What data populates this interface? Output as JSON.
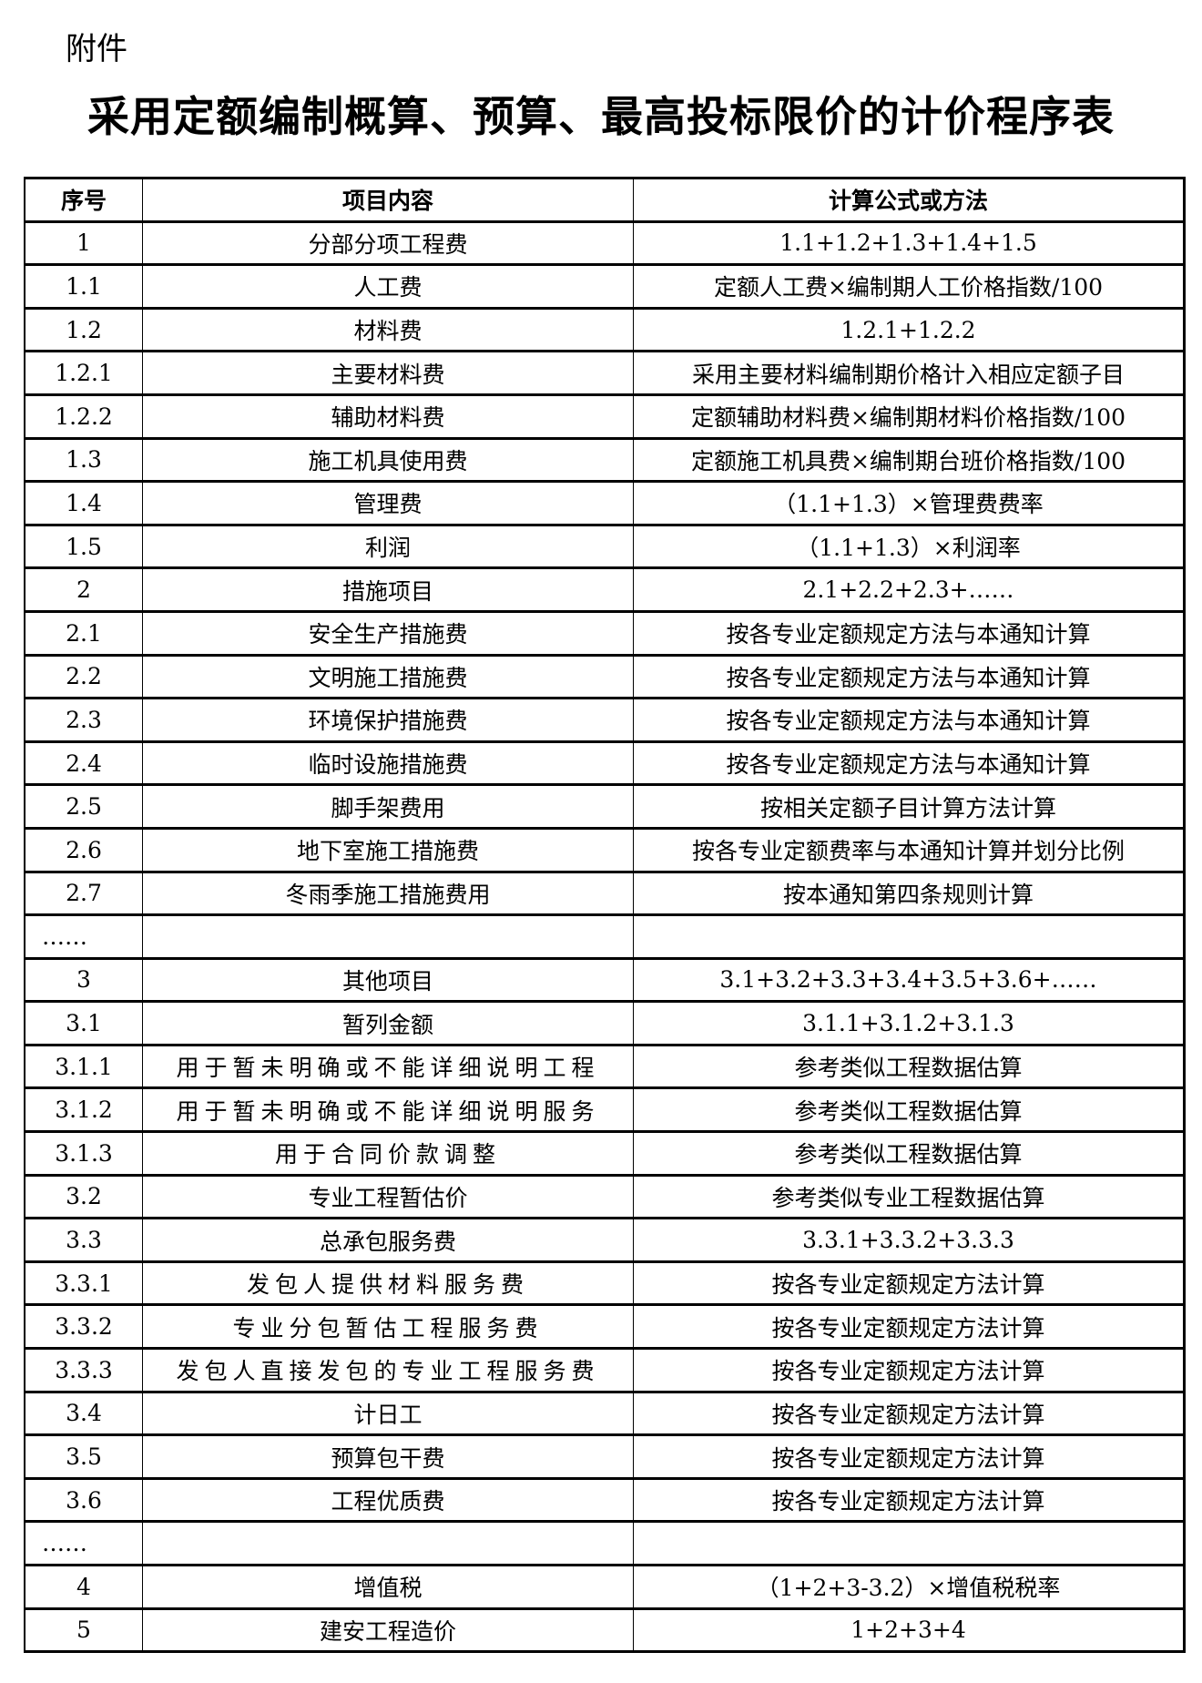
{
  "attachment_label": "附件",
  "title": "采用定额编制概算、预算、最高投标限价的计价程序表",
  "table": {
    "headers": [
      "序号",
      "项目内容",
      "计算公式或方法"
    ],
    "rows": [
      [
        "1",
        "分部分项工程费",
        "1.1+1.2+1.3+1.4+1.5"
      ],
      [
        "1.1",
        "人工费",
        "定额人工费×编制期人工价格指数/100"
      ],
      [
        "1.2",
        "材料费",
        "1.2.1+1.2.2"
      ],
      [
        "1.2.1",
        "主要材料费",
        "采用主要材料编制期价格计入相应定额子目"
      ],
      [
        "1.2.2",
        "辅助材料费",
        "定额辅助材料费×编制期材料价格指数/100"
      ],
      [
        "1.3",
        "施工机具使用费",
        "定额施工机具费×编制期台班价格指数/100"
      ],
      [
        "1.4",
        "管理费",
        "（1.1+1.3）×管理费费率"
      ],
      [
        "1.5",
        "利润",
        "（1.1+1.3）×利润率"
      ],
      [
        "2",
        "措施项目",
        "2.1+2.2+2.3+……"
      ],
      [
        "2.1",
        "安全生产措施费",
        "按各专业定额规定方法与本通知计算"
      ],
      [
        "2.2",
        "文明施工措施费",
        "按各专业定额规定方法与本通知计算"
      ],
      [
        "2.3",
        "环境保护措施费",
        "按各专业定额规定方法与本通知计算"
      ],
      [
        "2.4",
        "临时设施措施费",
        "按各专业定额规定方法与本通知计算"
      ],
      [
        "2.5",
        "脚手架费用",
        "按相关定额子目计算方法计算"
      ],
      [
        "2.6",
        "地下室施工措施费",
        "按各专业定额费率与本通知计算并划分比例"
      ],
      [
        "2.7",
        "冬雨季施工措施费用",
        "按本通知第四条规则计算"
      ],
      [
        "……",
        "",
        ""
      ],
      [
        "3",
        "其他项目",
        "3.1+3.2+3.3+3.4+3.5+3.6+……"
      ],
      [
        "3.1",
        "暂列金额",
        "3.1.1+3.1.2+3.1.3"
      ],
      [
        "3.1.1",
        "用于暂未明确或不能详细说明工程",
        "参考类似工程数据估算"
      ],
      [
        "3.1.2",
        "用于暂未明确或不能详细说明服务",
        "参考类似工程数据估算"
      ],
      [
        "3.1.3",
        "用于合同价款调整",
        "参考类似工程数据估算"
      ],
      [
        "3.2",
        "专业工程暂估价",
        "参考类似专业工程数据估算"
      ],
      [
        "3.3",
        "总承包服务费",
        "3.3.1+3.3.2+3.3.3"
      ],
      [
        "3.3.1",
        "发包人提供材料服务费",
        "按各专业定额规定方法计算"
      ],
      [
        "3.3.2",
        "专业分包暂估工程服务费",
        "按各专业定额规定方法计算"
      ],
      [
        "3.3.3",
        "发包人直接发包的专业工程服务费",
        "按各专业定额规定方法计算"
      ],
      [
        "3.4",
        "计日工",
        "按各专业定额规定方法计算"
      ],
      [
        "3.5",
        "预算包干费",
        "按各专业定额规定方法计算"
      ],
      [
        "3.6",
        "工程优质费",
        "按各专业定额规定方法计算"
      ],
      [
        "……",
        "",
        ""
      ],
      [
        "4",
        "增值税",
        "（1+2+3-3.2）×增值税税率"
      ],
      [
        "5",
        "建安工程造价",
        "1+2+3+4"
      ]
    ]
  }
}
